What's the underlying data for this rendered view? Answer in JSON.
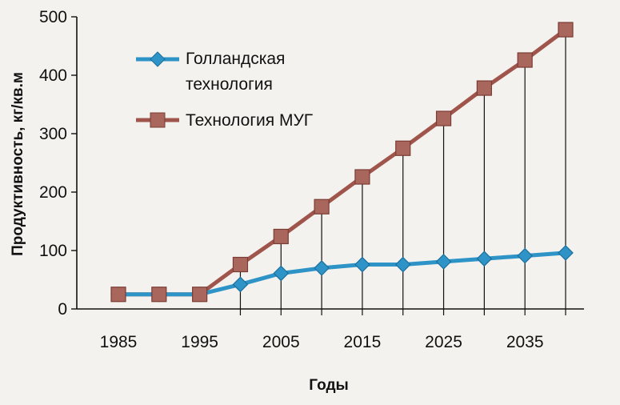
{
  "chart_data": {
    "type": "line",
    "xlabel": "Годы",
    "ylabel": "Продуктивность, кг/кв.м",
    "ylim": [
      0,
      500
    ],
    "xlim": [
      1980,
      2040
    ],
    "y_ticks": [
      0,
      100,
      200,
      300,
      400,
      500
    ],
    "x_ticks": [
      1985,
      1995,
      2005,
      2015,
      2025,
      2035
    ],
    "grid": false,
    "legend_position": "top-left",
    "x": [
      1985,
      1990,
      1995,
      2000,
      2005,
      2010,
      2015,
      2020,
      2025,
      2030,
      2035,
      2040
    ],
    "series": [
      {
        "name": "Голландская технология",
        "legend_lines": [
          "Голландская",
          "технология"
        ],
        "color": "#2e94c8",
        "marker": "diamond",
        "values": [
          25,
          25,
          25,
          42,
          61,
          70,
          76,
          76,
          81,
          86,
          91,
          96
        ]
      },
      {
        "name": "Технология МУГ",
        "legend_lines": [
          "Технология МУГ"
        ],
        "color": "#a0554c",
        "marker": "square",
        "values": [
          25,
          25,
          25,
          76,
          124,
          175,
          226,
          275,
          326,
          378,
          426,
          478
        ]
      }
    ]
  }
}
